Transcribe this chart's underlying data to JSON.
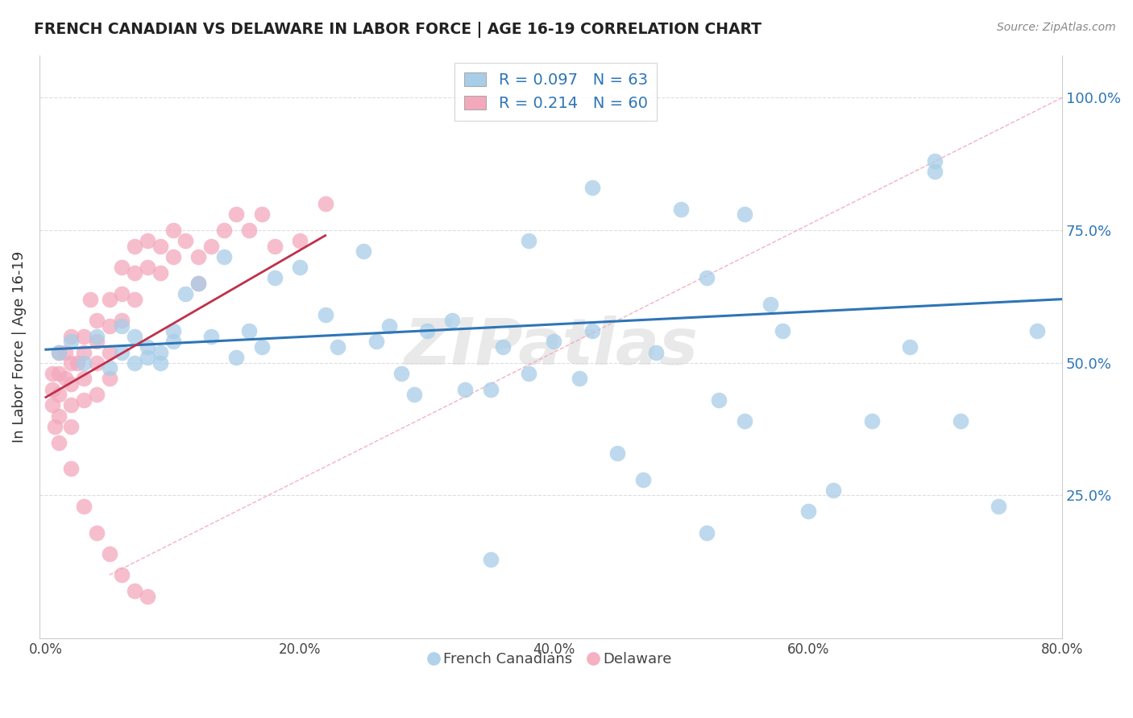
{
  "title": "FRENCH CANADIAN VS DELAWARE IN LABOR FORCE | AGE 16-19 CORRELATION CHART",
  "source": "Source: ZipAtlas.com",
  "ylabel": "In Labor Force | Age 16-19",
  "xlim": [
    -0.005,
    0.8
  ],
  "ylim": [
    -0.02,
    1.08
  ],
  "xticks": [
    0.0,
    0.2,
    0.4,
    0.6,
    0.8
  ],
  "xticklabels": [
    "0.0%",
    "20.0%",
    "40.0%",
    "60.0%",
    "80.0%"
  ],
  "yticks_right": [
    0.25,
    0.5,
    0.75,
    1.0
  ],
  "yticklabels_right": [
    "25.0%",
    "50.0%",
    "75.0%",
    "100.0%"
  ],
  "blue_color": "#A8CDE8",
  "pink_color": "#F4A8BC",
  "blue_line_color": "#2E75B6",
  "pink_line_color": "#C0304A",
  "R_blue": 0.097,
  "N_blue": 63,
  "R_pink": 0.214,
  "N_pink": 60,
  "legend_labels": [
    "French Canadians",
    "Delaware"
  ],
  "watermark": "ZIPatlas",
  "grid_color": "#DDDDDD",
  "diag_color": "#CCCCCC",
  "blue_x": [
    0.01,
    0.02,
    0.03,
    0.04,
    0.05,
    0.06,
    0.06,
    0.07,
    0.07,
    0.08,
    0.08,
    0.09,
    0.09,
    0.1,
    0.1,
    0.11,
    0.12,
    0.13,
    0.14,
    0.15,
    0.16,
    0.17,
    0.18,
    0.2,
    0.22,
    0.23,
    0.25,
    0.26,
    0.27,
    0.29,
    0.3,
    0.32,
    0.33,
    0.35,
    0.36,
    0.38,
    0.4,
    0.42,
    0.43,
    0.45,
    0.48,
    0.5,
    0.52,
    0.53,
    0.55,
    0.57,
    0.58,
    0.6,
    0.62,
    0.65,
    0.68,
    0.7,
    0.72,
    0.75,
    0.78,
    0.52,
    0.47,
    0.35,
    0.28,
    0.43,
    0.38,
    0.55,
    0.7
  ],
  "blue_y": [
    0.52,
    0.54,
    0.5,
    0.55,
    0.49,
    0.52,
    0.57,
    0.5,
    0.55,
    0.51,
    0.53,
    0.5,
    0.52,
    0.54,
    0.56,
    0.63,
    0.65,
    0.55,
    0.7,
    0.51,
    0.56,
    0.53,
    0.66,
    0.68,
    0.59,
    0.53,
    0.71,
    0.54,
    0.57,
    0.44,
    0.56,
    0.58,
    0.45,
    0.45,
    0.53,
    0.48,
    0.54,
    0.47,
    0.56,
    0.33,
    0.52,
    0.79,
    0.66,
    0.43,
    0.39,
    0.61,
    0.56,
    0.22,
    0.26,
    0.39,
    0.53,
    0.86,
    0.39,
    0.23,
    0.56,
    0.18,
    0.28,
    0.13,
    0.48,
    0.83,
    0.73,
    0.78,
    0.88
  ],
  "pink_x": [
    0.005,
    0.005,
    0.005,
    0.007,
    0.01,
    0.01,
    0.01,
    0.01,
    0.01,
    0.015,
    0.015,
    0.02,
    0.02,
    0.02,
    0.02,
    0.02,
    0.025,
    0.03,
    0.03,
    0.03,
    0.03,
    0.035,
    0.04,
    0.04,
    0.04,
    0.04,
    0.05,
    0.05,
    0.05,
    0.05,
    0.06,
    0.06,
    0.06,
    0.07,
    0.07,
    0.07,
    0.08,
    0.08,
    0.09,
    0.09,
    0.1,
    0.1,
    0.11,
    0.12,
    0.12,
    0.13,
    0.14,
    0.15,
    0.16,
    0.17,
    0.18,
    0.2,
    0.22,
    0.02,
    0.03,
    0.04,
    0.05,
    0.06,
    0.07,
    0.08
  ],
  "pink_y": [
    0.45,
    0.42,
    0.48,
    0.38,
    0.52,
    0.48,
    0.44,
    0.4,
    0.35,
    0.52,
    0.47,
    0.55,
    0.5,
    0.46,
    0.42,
    0.38,
    0.5,
    0.55,
    0.52,
    0.47,
    0.43,
    0.62,
    0.58,
    0.54,
    0.5,
    0.44,
    0.62,
    0.57,
    0.52,
    0.47,
    0.68,
    0.63,
    0.58,
    0.72,
    0.67,
    0.62,
    0.73,
    0.68,
    0.72,
    0.67,
    0.75,
    0.7,
    0.73,
    0.7,
    0.65,
    0.72,
    0.75,
    0.78,
    0.75,
    0.78,
    0.72,
    0.73,
    0.8,
    0.3,
    0.23,
    0.18,
    0.14,
    0.1,
    0.07,
    0.06
  ]
}
